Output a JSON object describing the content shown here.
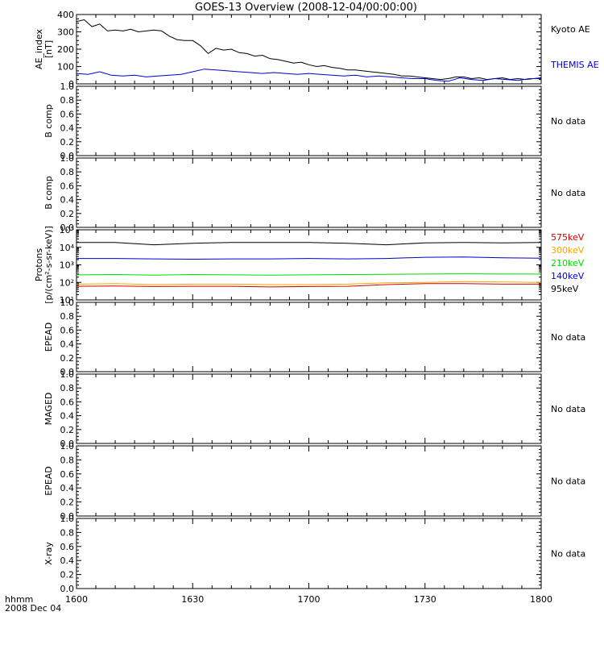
{
  "title": "GOES-13 Overview (2008-12-04/00:00:00)",
  "footer": {
    "line1": "hhmm",
    "line2": "2008 Dec 04"
  },
  "time_axis": {
    "ticks": [
      "1600",
      "1630",
      "1700",
      "1730",
      "1800"
    ],
    "range_minutes": [
      0,
      120
    ]
  },
  "colors": {
    "black": "#000000",
    "blue": "#0000cc",
    "red": "#cc0000",
    "orange": "#ffa500",
    "green": "#00dd00",
    "axis": "#000000"
  },
  "chart_data": [
    {
      "type": "line",
      "ylabel": "AE_index",
      "yunit": "[nT]",
      "ylim": [
        0,
        400
      ],
      "yticks": [
        "0",
        "100",
        "200",
        "300",
        "400"
      ],
      "series": [
        {
          "name": "Kyoto AE",
          "color": "#000000",
          "x": [
            0,
            2,
            4,
            6,
            8,
            10,
            12,
            14,
            16,
            18,
            20,
            22,
            24,
            26,
            28,
            30,
            32,
            34,
            36,
            38,
            40,
            42,
            44,
            46,
            48,
            50,
            52,
            54,
            56,
            58,
            60,
            62,
            64,
            66,
            68,
            70,
            72,
            74,
            76,
            78,
            80,
            82,
            84,
            86,
            88,
            90,
            92,
            94,
            96,
            98,
            100,
            102,
            104,
            106,
            108,
            110,
            112,
            114,
            116,
            118,
            120
          ],
          "y": [
            360,
            370,
            330,
            345,
            305,
            310,
            305,
            315,
            300,
            305,
            310,
            305,
            275,
            255,
            250,
            250,
            220,
            175,
            205,
            195,
            200,
            180,
            175,
            160,
            165,
            145,
            140,
            130,
            120,
            125,
            110,
            100,
            105,
            95,
            90,
            80,
            80,
            75,
            70,
            65,
            60,
            55,
            45,
            45,
            40,
            35,
            30,
            25,
            30,
            40,
            40,
            30,
            35,
            25,
            30,
            35,
            25,
            30,
            25,
            30,
            35
          ]
        },
        {
          "name": "THEMIS AE",
          "color": "#0000cc",
          "x": [
            0,
            3,
            6,
            9,
            12,
            15,
            18,
            21,
            24,
            27,
            30,
            33,
            36,
            39,
            42,
            45,
            48,
            51,
            54,
            57,
            60,
            63,
            66,
            69,
            72,
            75,
            78,
            81,
            84,
            87,
            90,
            93,
            96,
            99,
            102,
            105,
            108,
            111,
            114,
            117,
            120
          ],
          "y": [
            60,
            55,
            70,
            50,
            45,
            50,
            40,
            45,
            50,
            55,
            70,
            85,
            80,
            75,
            70,
            65,
            60,
            65,
            60,
            55,
            60,
            55,
            50,
            45,
            50,
            40,
            45,
            40,
            35,
            30,
            30,
            20,
            15,
            35,
            25,
            20,
            30,
            25,
            20,
            30,
            30
          ]
        }
      ]
    },
    {
      "type": "line",
      "ylabel": "B comp",
      "ylim": [
        0,
        1
      ],
      "yticks": [
        "0.0",
        "0.2",
        "0.4",
        "0.6",
        "0.8",
        "1.0"
      ],
      "note": "No data",
      "series": []
    },
    {
      "type": "line",
      "ylabel": "B comp",
      "ylim": [
        0,
        1
      ],
      "yticks": [
        "0.0",
        "0.2",
        "0.4",
        "0.6",
        "0.8",
        "1.0"
      ],
      "note": "No data",
      "series": []
    },
    {
      "type": "line",
      "ylabel": "Protons",
      "yunit": "[p/(cm²-s-sr-keV)]",
      "ylim": [
        10,
        100000
      ],
      "yscale": "log",
      "yticks": [
        "10¹",
        "10²",
        "10³",
        "10⁴",
        "10⁵"
      ],
      "series": [
        {
          "name": "575keV",
          "color": "#cc0000",
          "x": [
            0,
            10,
            20,
            30,
            40,
            50,
            60,
            70,
            80,
            90,
            100,
            110,
            120
          ],
          "y": [
            60,
            62,
            58,
            60,
            60,
            55,
            58,
            60,
            75,
            85,
            85,
            80,
            80
          ]
        },
        {
          "name": "300keV",
          "color": "#ffa500",
          "x": [
            0,
            10,
            20,
            30,
            40,
            50,
            60,
            70,
            80,
            90,
            100,
            110,
            120
          ],
          "y": [
            80,
            85,
            75,
            80,
            80,
            75,
            75,
            80,
            95,
            100,
            110,
            105,
            100
          ]
        },
        {
          "name": "210keV",
          "color": "#00dd00",
          "x": [
            0,
            10,
            20,
            30,
            40,
            50,
            60,
            70,
            80,
            90,
            100,
            110,
            120
          ],
          "y": [
            270,
            280,
            260,
            280,
            270,
            260,
            270,
            280,
            290,
            300,
            310,
            300,
            300
          ]
        },
        {
          "name": "140keV",
          "color": "#0000cc",
          "x": [
            0,
            10,
            20,
            30,
            40,
            50,
            60,
            70,
            80,
            90,
            100,
            110,
            120
          ],
          "y": [
            2300,
            2300,
            2200,
            2100,
            2200,
            2200,
            2300,
            2200,
            2300,
            2700,
            2800,
            2500,
            2400
          ]
        },
        {
          "name": "95keV",
          "color": "#000000",
          "x": [
            0,
            10,
            20,
            30,
            40,
            50,
            60,
            70,
            80,
            90,
            100,
            110,
            120
          ],
          "y": [
            19000,
            19000,
            14000,
            17000,
            19000,
            19000,
            19000,
            17000,
            14000,
            18000,
            19000,
            18000,
            19000
          ]
        }
      ]
    },
    {
      "type": "line",
      "ylabel": "EPEAD",
      "ylim": [
        0,
        1
      ],
      "yticks": [
        "0.0",
        "0.2",
        "0.4",
        "0.6",
        "0.8",
        "1.0"
      ],
      "note": "No data",
      "series": []
    },
    {
      "type": "line",
      "ylabel": "MAGED",
      "ylim": [
        0,
        1
      ],
      "yticks": [
        "0.0",
        "0.2",
        "0.4",
        "0.6",
        "0.8",
        "1.0"
      ],
      "note": "No data",
      "series": []
    },
    {
      "type": "line",
      "ylabel": "EPEAD",
      "ylim": [
        0,
        1
      ],
      "yticks": [
        "0.0",
        "0.2",
        "0.4",
        "0.6",
        "0.8",
        "1.0"
      ],
      "note": "No data",
      "series": []
    },
    {
      "type": "line",
      "ylabel": "X-ray",
      "ylim": [
        0,
        1
      ],
      "yticks": [
        "0.0",
        "0.2",
        "0.4",
        "0.6",
        "0.8",
        "1.0"
      ],
      "note": "No data",
      "series": []
    }
  ]
}
